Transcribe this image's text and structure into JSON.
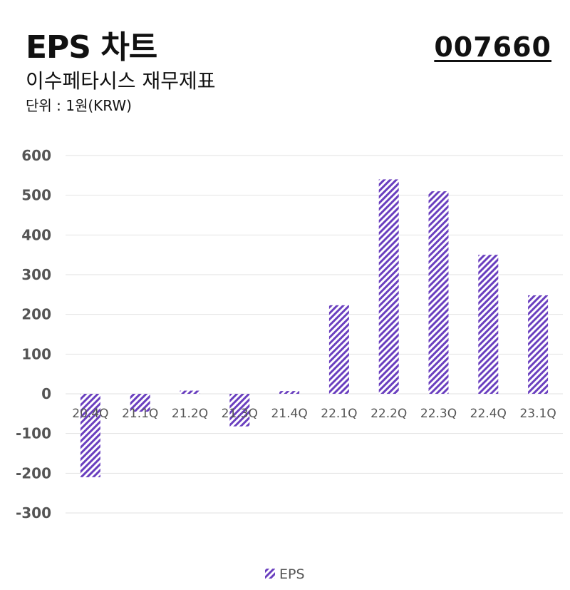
{
  "header": {
    "title": "EPS 차트",
    "subtitle": "이수페타시스 재무제표",
    "unit": "단위 : 1원(KRW)",
    "code": "007660"
  },
  "colors": {
    "bar": "#6a3fbf",
    "grid": "#e2e2e2"
  },
  "chart_data": {
    "type": "bar",
    "categories": [
      "20.4Q",
      "21.1Q",
      "21.2Q",
      "21.3Q",
      "21.4Q",
      "22.1Q",
      "22.2Q",
      "22.3Q",
      "22.4Q",
      "23.1Q"
    ],
    "series": [
      {
        "name": "EPS",
        "values": [
          -210,
          -45,
          8,
          -82,
          7,
          223,
          540,
          510,
          350,
          248
        ]
      }
    ],
    "yticks": [
      600,
      500,
      400,
      300,
      200,
      100,
      0,
      -100,
      -200,
      -300
    ],
    "ylim": [
      -300,
      600
    ],
    "grid": true,
    "legend": "bottom-center"
  }
}
